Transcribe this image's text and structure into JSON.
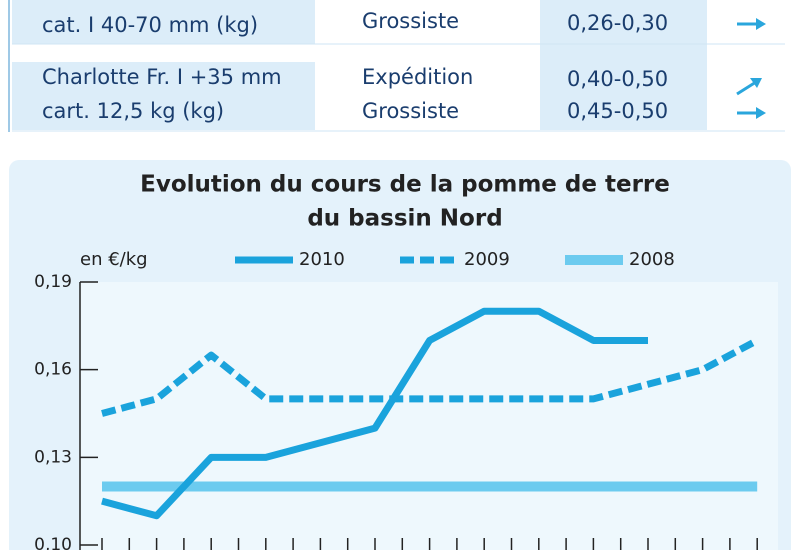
{
  "table": {
    "rows": [
      {
        "product": [
          "cat. I 40-70 mm (kg)"
        ],
        "stage": [
          "Grossiste"
        ],
        "price": [
          "0,26-0,30"
        ]
      },
      {
        "product": [
          "Charlotte Fr. I +35 mm",
          "cart. 12,5 kg (kg)"
        ],
        "stage": [
          "Expédition",
          "Grossiste"
        ],
        "price": [
          "0,40-0,50",
          "0,45-0,50"
        ]
      }
    ]
  },
  "chart_data": {
    "type": "line",
    "title": [
      "Evolution du cours de la pomme de terre",
      "du bassin Nord"
    ],
    "y_label": "en €/kg",
    "categories": [
      null,
      null,
      null,
      null,
      null,
      null,
      null,
      null,
      null,
      null,
      null,
      null,
      null
    ],
    "series": [
      {
        "name": "2010",
        "color": "#1aa3dc",
        "dash": false,
        "values": [
          0.115,
          0.11,
          0.13,
          0.13,
          0.135,
          0.14,
          0.17,
          0.18,
          0.18,
          0.17,
          0.17,
          null,
          null
        ]
      },
      {
        "name": "2009",
        "color": "#1aa3dc",
        "dash": true,
        "values": [
          0.145,
          0.15,
          0.165,
          0.15,
          0.15,
          0.15,
          0.15,
          0.15,
          0.15,
          0.15,
          0.155,
          0.16,
          0.17
        ]
      },
      {
        "name": "2008",
        "color": "#6ccbef",
        "dash": false,
        "values": [
          0.12,
          0.12,
          0.12,
          0.12,
          0.12,
          0.12,
          0.12,
          0.12,
          0.12,
          0.12,
          0.12,
          0.12,
          0.12
        ]
      }
    ],
    "ylim": [
      0.1,
      0.19
    ],
    "yticks": [
      {
        "value": 0.1,
        "label": "0,10"
      },
      {
        "value": 0.13,
        "label": "0,13"
      },
      {
        "value": 0.16,
        "label": "0,16"
      },
      {
        "value": 0.19,
        "label": "0,19"
      }
    ],
    "legend": "top"
  }
}
